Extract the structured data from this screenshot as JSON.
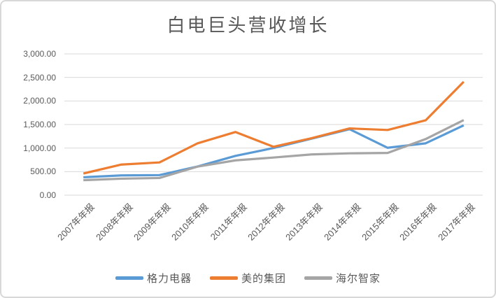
{
  "chart_data": {
    "type": "line",
    "title": "白电巨头营收增长",
    "categories": [
      "2007年年报",
      "2008年年报",
      "2009年年报",
      "2010年年报",
      "2011年年报",
      "2012年年报",
      "2013年年报",
      "2014年年报",
      "2015年年报",
      "2016年年报",
      "2017年年报"
    ],
    "series": [
      {
        "name": "格力电器",
        "color": "#5B9BD5",
        "values": [
          380,
          420,
          426,
          608,
          835,
          1001,
          1200,
          1400,
          1006,
          1101,
          1483
        ]
      },
      {
        "name": "美的集团",
        "color": "#ED7D31",
        "values": [
          460,
          650,
          695,
          1100,
          1341,
          1027,
          1210,
          1417,
          1384,
          1590,
          2407
        ]
      },
      {
        "name": "海尔智家",
        "color": "#A5A5A5",
        "values": [
          318,
          350,
          365,
          606,
          739,
          799,
          865,
          888,
          897,
          1191,
          1593
        ]
      }
    ],
    "ylim": [
      0,
      3000
    ],
    "y_ticks": [
      {
        "value": 0,
        "label": "0.00"
      },
      {
        "value": 500,
        "label": "500.00"
      },
      {
        "value": 1000,
        "label": "1,000.00"
      },
      {
        "value": 1500,
        "label": "1,500.00"
      },
      {
        "value": 2000,
        "label": "2,000.00"
      },
      {
        "value": 2500,
        "label": "2,500.00"
      },
      {
        "value": 3000,
        "label": "3,000.00"
      }
    ],
    "grid": true,
    "legend_position": "bottom",
    "xlabel": "",
    "ylabel": ""
  },
  "theme": {
    "grid_color": "#D9D9D9",
    "text_color": "#595959",
    "border_color": "#D8D8D8",
    "background": "#FFFFFF"
  }
}
